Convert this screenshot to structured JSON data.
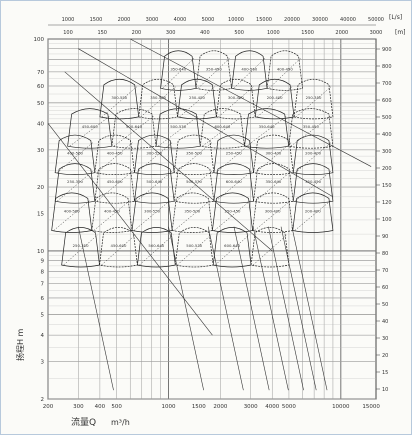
{
  "chart_data": {
    "type": "line",
    "scale": "log-log",
    "grid": true,
    "flow_unit_text": "m³/h",
    "flow_label_text": "流量Q",
    "head_label_text": "扬程H m",
    "top_unit_a": "[L/s]",
    "top_unit_b": "[m]",
    "bottom_ticks": [
      "200",
      "300",
      "400",
      "500",
      "1000",
      "1500",
      "2000",
      "3000",
      "4000",
      "5000",
      "10000",
      "15000"
    ],
    "top_ticks_a": [
      "1000",
      "1500",
      "2000",
      "3000",
      "4000",
      "5000",
      "10000",
      "15000",
      "20000",
      "30000",
      "40000",
      "50000"
    ],
    "top_ticks_b": [
      "100",
      "150",
      "200",
      "300",
      "400",
      "500",
      "1000",
      "1500",
      "2000",
      "3000"
    ],
    "left_ticks": [
      "100",
      "70",
      "60",
      "50",
      "40",
      "30",
      "20",
      "15",
      "10",
      "9",
      "8",
      "7",
      "6",
      "5",
      "4",
      "3",
      "2"
    ],
    "right_ticks": [
      "900",
      "800",
      "700",
      "600",
      "500",
      "400",
      "300",
      "200",
      "150",
      "120",
      "100",
      "90",
      "80",
      "70",
      "60",
      "50",
      "40",
      "30",
      "20",
      "15",
      "10"
    ],
    "series_labels": [
      "350-640",
      "350-450",
      "400-560",
      "400-450",
      "300-550",
      "350-500",
      "250-450",
      "300-400",
      "200-400",
      "250-350",
      "450-600",
      "500-640",
      "500-530",
      "600-640"
    ]
  }
}
